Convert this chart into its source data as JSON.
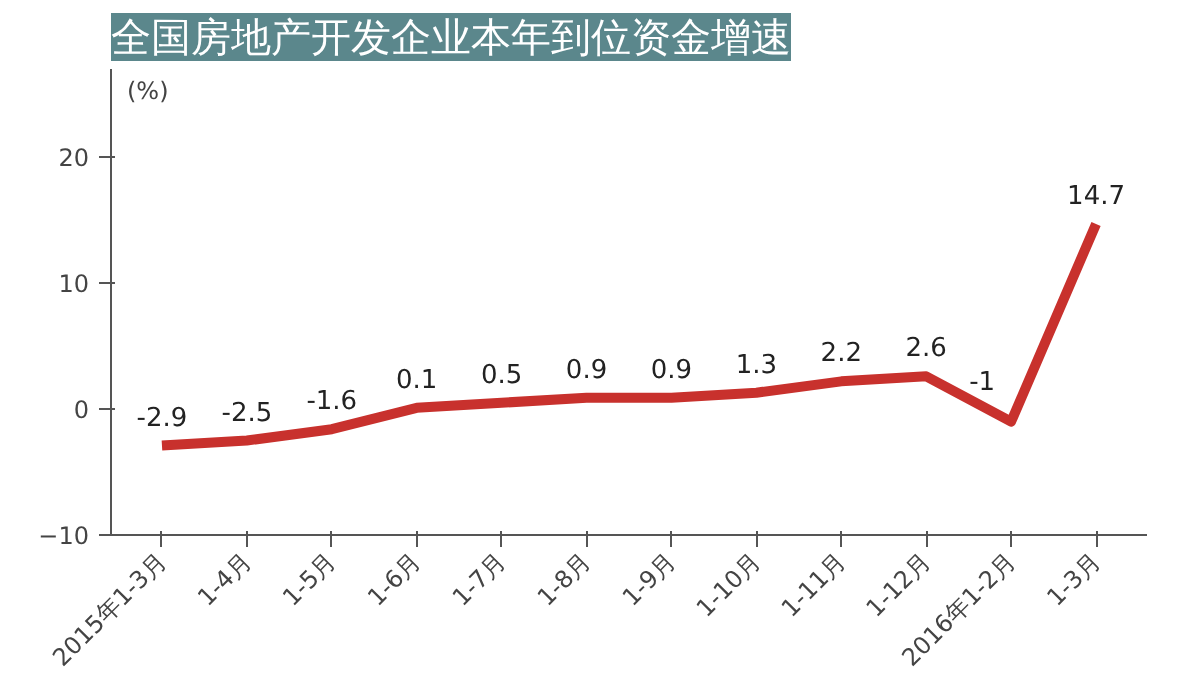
{
  "chart_data": {
    "type": "line",
    "title": "全国房地产开发企业本年到位资金增速",
    "ylabel": "(%)",
    "categories": [
      "2015年1-3月",
      "1-4月",
      "1-5月",
      "1-6月",
      "1-7月",
      "1-8月",
      "1-9月",
      "1-10月",
      "1-11月",
      "1-12月",
      "2016年1-2月",
      "1-3月"
    ],
    "series": [
      {
        "color": "#c8312d",
        "values": [
          -2.9,
          -2.5,
          -1.6,
          0.1,
          0.5,
          0.9,
          0.9,
          1.3,
          2.2,
          2.6,
          -1,
          14.7
        ]
      }
    ],
    "ylim": [
      -10,
      27
    ],
    "yticks": [
      -10,
      0,
      10,
      20
    ],
    "data_labels": true,
    "grid": false,
    "marker": "none",
    "line_style": "solid"
  }
}
